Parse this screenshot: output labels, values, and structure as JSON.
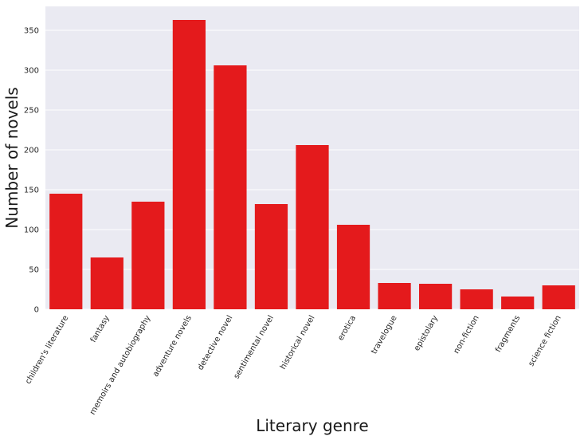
{
  "chart_data": {
    "type": "bar",
    "title": "",
    "xlabel": "Literary genre",
    "ylabel": "Number of novels",
    "categories": [
      "children's literature",
      "fantasy",
      "memoirs and autobiography",
      "adventure novels",
      "detective novel",
      "sentimental novel",
      "historical novel",
      "erotica",
      "travelogue",
      "epistolary",
      "non-fiction",
      "fragments",
      "science fiction"
    ],
    "values": [
      145,
      65,
      135,
      363,
      306,
      132,
      206,
      106,
      33,
      32,
      25,
      16,
      30
    ],
    "ylim": [
      0,
      380
    ],
    "yticks": [
      0,
      50,
      100,
      150,
      200,
      250,
      300,
      350
    ],
    "grid": true,
    "legend": "none",
    "colors": {
      "bar": "#e41a1c",
      "background": "#eaeaf2",
      "grid": "#ffffff"
    }
  }
}
